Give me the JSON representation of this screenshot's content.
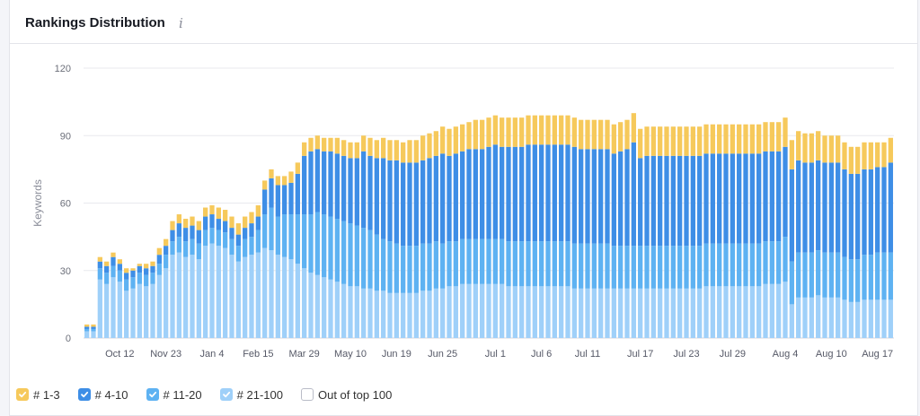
{
  "card": {
    "title": "Rankings Distribution",
    "info_glyph": "i"
  },
  "legend": {
    "items": [
      {
        "label": "# 1-3",
        "color": "#f6c95b",
        "checked": true
      },
      {
        "label": "# 4-10",
        "color": "#3e8ee6",
        "checked": true
      },
      {
        "label": "# 11-20",
        "color": "#5eb2f2",
        "checked": true
      },
      {
        "label": "# 21-100",
        "color": "#9fd0f9",
        "checked": true
      },
      {
        "label": "Out of top 100",
        "color": "#ffffff",
        "checked": false
      }
    ]
  },
  "chart_data": {
    "type": "bar",
    "stacked": true,
    "ylabel": "Keywords",
    "ylim": [
      0,
      120
    ],
    "yticks": [
      0,
      30,
      60,
      90,
      120
    ],
    "grid": true,
    "legend_position": "bottom-left",
    "xtick_labels": [
      {
        "label": "Oct 12",
        "index": 5
      },
      {
        "label": "Nov 23",
        "index": 12
      },
      {
        "label": "Jan 4",
        "index": 19
      },
      {
        "label": "Feb 15",
        "index": 26
      },
      {
        "label": "Mar 29",
        "index": 33
      },
      {
        "label": "May 10",
        "index": 40
      },
      {
        "label": "Jun 19",
        "index": 47
      },
      {
        "label": "Jun 25",
        "index": 54
      },
      {
        "label": "Jul 1",
        "index": 62
      },
      {
        "label": "Jul 6",
        "index": 69
      },
      {
        "label": "Jul 11",
        "index": 76
      },
      {
        "label": "Jul 17",
        "index": 84
      },
      {
        "label": "Jul 23",
        "index": 91
      },
      {
        "label": "Jul 29",
        "index": 98
      },
      {
        "label": "Aug 4",
        "index": 106
      },
      {
        "label": "Aug 10",
        "index": 113
      },
      {
        "label": "Aug 17",
        "index": 120
      }
    ],
    "series": [
      {
        "name": "# 21-100",
        "color": "#9fd0f9",
        "values": [
          3,
          3,
          26,
          24,
          27,
          25,
          21,
          22,
          24,
          23,
          24,
          28,
          31,
          37,
          38,
          36,
          37,
          35,
          41,
          42,
          41,
          40,
          37,
          34,
          36,
          37,
          38,
          40,
          39,
          37,
          36,
          35,
          33,
          31,
          29,
          28,
          27,
          26,
          25,
          24,
          23,
          23,
          22,
          22,
          21,
          21,
          20,
          20,
          20,
          20,
          20,
          21,
          21,
          22,
          22,
          23,
          23,
          24,
          24,
          24,
          24,
          24,
          24,
          24,
          23,
          23,
          23,
          23,
          23,
          23,
          23,
          23,
          23,
          23,
          22,
          22,
          22,
          22,
          22,
          22,
          22,
          22,
          22,
          22,
          22,
          22,
          22,
          22,
          22,
          22,
          22,
          22,
          22,
          22,
          23,
          23,
          23,
          23,
          23,
          23,
          23,
          23,
          23,
          24,
          24,
          24,
          25,
          15,
          18,
          18,
          18,
          19,
          18,
          18,
          18,
          17,
          16,
          16,
          17,
          17,
          17,
          17,
          17
        ]
      },
      {
        "name": "# 11-20",
        "color": "#5eb2f2",
        "values": [
          1,
          1,
          5,
          5,
          5,
          5,
          5,
          5,
          5,
          5,
          5,
          5,
          6,
          6,
          7,
          7,
          7,
          7,
          7,
          7,
          7,
          7,
          7,
          7,
          8,
          8,
          10,
          15,
          19,
          17,
          19,
          20,
          22,
          24,
          26,
          28,
          28,
          28,
          28,
          28,
          28,
          27,
          27,
          26,
          25,
          23,
          23,
          22,
          21,
          21,
          21,
          21,
          21,
          21,
          20,
          20,
          20,
          20,
          20,
          20,
          20,
          20,
          20,
          20,
          20,
          20,
          20,
          20,
          20,
          20,
          20,
          20,
          20,
          20,
          20,
          20,
          20,
          20,
          20,
          20,
          19,
          19,
          19,
          19,
          19,
          19,
          19,
          19,
          19,
          19,
          19,
          19,
          19,
          19,
          19,
          19,
          19,
          19,
          19,
          19,
          19,
          19,
          19,
          19,
          19,
          19,
          20,
          19,
          20,
          20,
          20,
          20,
          20,
          20,
          20,
          19,
          19,
          19,
          20,
          20,
          21,
          21,
          21
        ]
      },
      {
        "name": "# 4-10",
        "color": "#3e8ee6",
        "values": [
          1,
          1,
          3,
          3,
          4,
          3,
          3,
          3,
          3,
          3,
          3,
          4,
          4,
          5,
          6,
          6,
          6,
          6,
          6,
          6,
          5,
          5,
          5,
          5,
          5,
          6,
          6,
          11,
          13,
          14,
          13,
          14,
          18,
          26,
          28,
          28,
          28,
          29,
          29,
          29,
          29,
          30,
          34,
          33,
          34,
          36,
          36,
          37,
          37,
          37,
          37,
          37,
          38,
          38,
          40,
          38,
          39,
          39,
          40,
          40,
          40,
          41,
          42,
          41,
          42,
          42,
          42,
          43,
          43,
          43,
          43,
          43,
          43,
          43,
          43,
          42,
          42,
          42,
          42,
          42,
          41,
          42,
          43,
          46,
          39,
          40,
          40,
          40,
          40,
          40,
          40,
          40,
          40,
          40,
          40,
          40,
          40,
          40,
          40,
          40,
          40,
          40,
          40,
          40,
          40,
          40,
          40,
          41,
          41,
          40,
          40,
          40,
          40,
          40,
          40,
          39,
          38,
          38,
          38,
          38,
          38,
          38,
          40
        ]
      },
      {
        "name": "# 1-3",
        "color": "#f6c95b",
        "values": [
          1,
          1,
          2,
          2,
          2,
          2,
          2,
          1,
          1,
          2,
          2,
          3,
          3,
          4,
          4,
          4,
          4,
          4,
          4,
          4,
          5,
          5,
          5,
          5,
          5,
          5,
          5,
          4,
          4,
          4,
          4,
          5,
          5,
          6,
          6,
          6,
          6,
          6,
          7,
          7,
          7,
          7,
          7,
          8,
          8,
          9,
          9,
          9,
          9,
          10,
          10,
          11,
          11,
          11,
          12,
          12,
          12,
          12,
          12,
          13,
          13,
          13,
          13,
          13,
          13,
          13,
          13,
          13,
          13,
          13,
          13,
          13,
          13,
          13,
          13,
          13,
          13,
          13,
          13,
          13,
          13,
          13,
          13,
          13,
          13,
          13,
          13,
          13,
          13,
          13,
          13,
          13,
          13,
          13,
          13,
          13,
          13,
          13,
          13,
          13,
          13,
          13,
          13,
          13,
          13,
          13,
          13,
          13,
          13,
          13,
          13,
          13,
          12,
          12,
          12,
          12,
          12,
          12,
          12,
          12,
          11,
          11,
          11
        ]
      }
    ]
  }
}
